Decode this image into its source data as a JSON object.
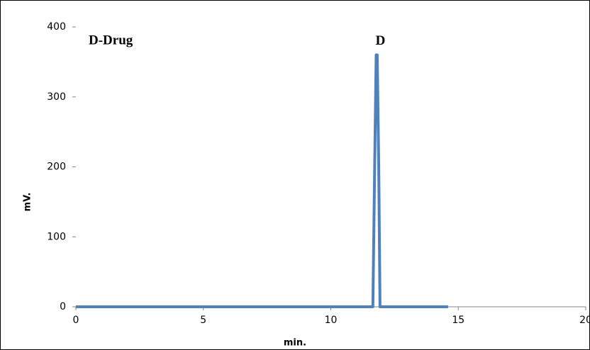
{
  "chart_data": {
    "type": "line",
    "annotations": [
      "D-Drug",
      "D"
    ],
    "x_label": "min.",
    "y_label": "mV.",
    "series": [
      {
        "color": "#4f81bd",
        "x": [
          0,
          11.65,
          11.72,
          11.78,
          11.82,
          11.88,
          11.93,
          14.6
        ],
        "values": [
          0,
          0,
          200,
          360,
          360,
          200,
          0,
          0
        ]
      }
    ],
    "xlim": [
      0,
      20
    ],
    "xticks": [
      0,
      5,
      10,
      15,
      20
    ],
    "ylim": [
      0,
      400
    ],
    "yticks": [
      0,
      100,
      200,
      300,
      400
    ]
  }
}
